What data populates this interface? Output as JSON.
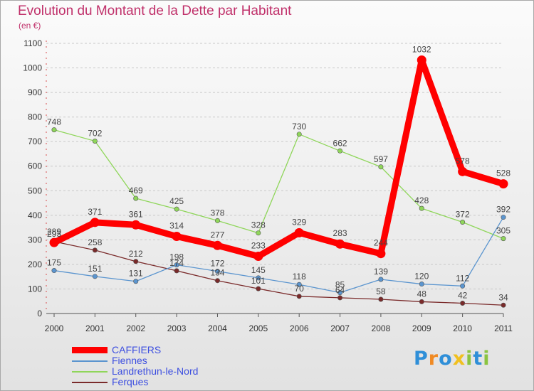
{
  "chart_data": {
    "type": "line",
    "title": "Evolution du Montant de la Dette par Habitant",
    "subtitle": "(en €)",
    "xlabel": "",
    "ylabel": "",
    "x": [
      "2000",
      "2001",
      "2002",
      "2003",
      "2004",
      "2005",
      "2006",
      "2007",
      "2008",
      "2009",
      "2010",
      "2011"
    ],
    "ylim": [
      0,
      1100
    ],
    "yticks": [
      0,
      100,
      200,
      300,
      400,
      500,
      600,
      700,
      800,
      900,
      1000,
      1100
    ],
    "grid": "horizontal-dashed",
    "legend_position": "bottom-left",
    "series": [
      {
        "name": "CAFFIERS",
        "color": "#ff0000",
        "values": [
          289,
          371,
          361,
          314,
          277,
          233,
          329,
          283,
          244,
          1032,
          578,
          528
        ]
      },
      {
        "name": "Fiennes",
        "color": "#5b95cf",
        "values": [
          175,
          151,
          131,
          198,
          172,
          145,
          118,
          85,
          139,
          120,
          112,
          392
        ]
      },
      {
        "name": "Landrethun-le-Nord",
        "color": "#8fd65a",
        "values": [
          748,
          702,
          469,
          425,
          378,
          328,
          730,
          662,
          597,
          428,
          372,
          305
        ]
      },
      {
        "name": "Ferques",
        "color": "#7a2a2a",
        "values": [
          293,
          258,
          212,
          174,
          134,
          101,
          70,
          64,
          58,
          48,
          42,
          34
        ]
      }
    ]
  },
  "logo": {
    "letters": [
      {
        "ch": "P",
        "color": "#2f8fd8"
      },
      {
        "ch": "r",
        "color": "#f08a24"
      },
      {
        "ch": "o",
        "color": "#2f8fd8"
      },
      {
        "ch": "x",
        "color": "#f0c020"
      },
      {
        "ch": "i",
        "color": "#8ac440"
      },
      {
        "ch": "t",
        "color": "#2f8fd8"
      },
      {
        "ch": "i",
        "color": "#8ac440"
      }
    ]
  }
}
